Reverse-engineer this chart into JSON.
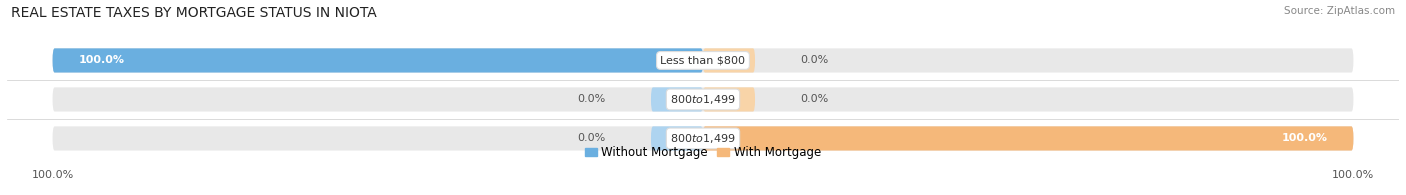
{
  "title": "REAL ESTATE TAXES BY MORTGAGE STATUS IN NIOTA",
  "source": "Source: ZipAtlas.com",
  "categories": [
    "Less than $800",
    "$800 to $1,499",
    "$800 to $1,499"
  ],
  "without_mortgage": [
    100.0,
    0.0,
    0.0
  ],
  "with_mortgage": [
    0.0,
    0.0,
    100.0
  ],
  "color_without": "#6aafe0",
  "color_with": "#f5b87a",
  "color_without_light": "#aed4f0",
  "color_with_light": "#f8d4a8",
  "color_bg_bar": "#e8e8e8",
  "bar_height": 0.62,
  "figsize": [
    14.06,
    1.95
  ],
  "dpi": 100,
  "legend_without": "Without Mortgage",
  "legend_with": "With Mortgage",
  "x_tick_label_left": "100.0%",
  "x_tick_label_right": "100.0%",
  "title_fontsize": 10,
  "source_fontsize": 7.5,
  "label_fontsize": 8,
  "cat_fontsize": 8
}
